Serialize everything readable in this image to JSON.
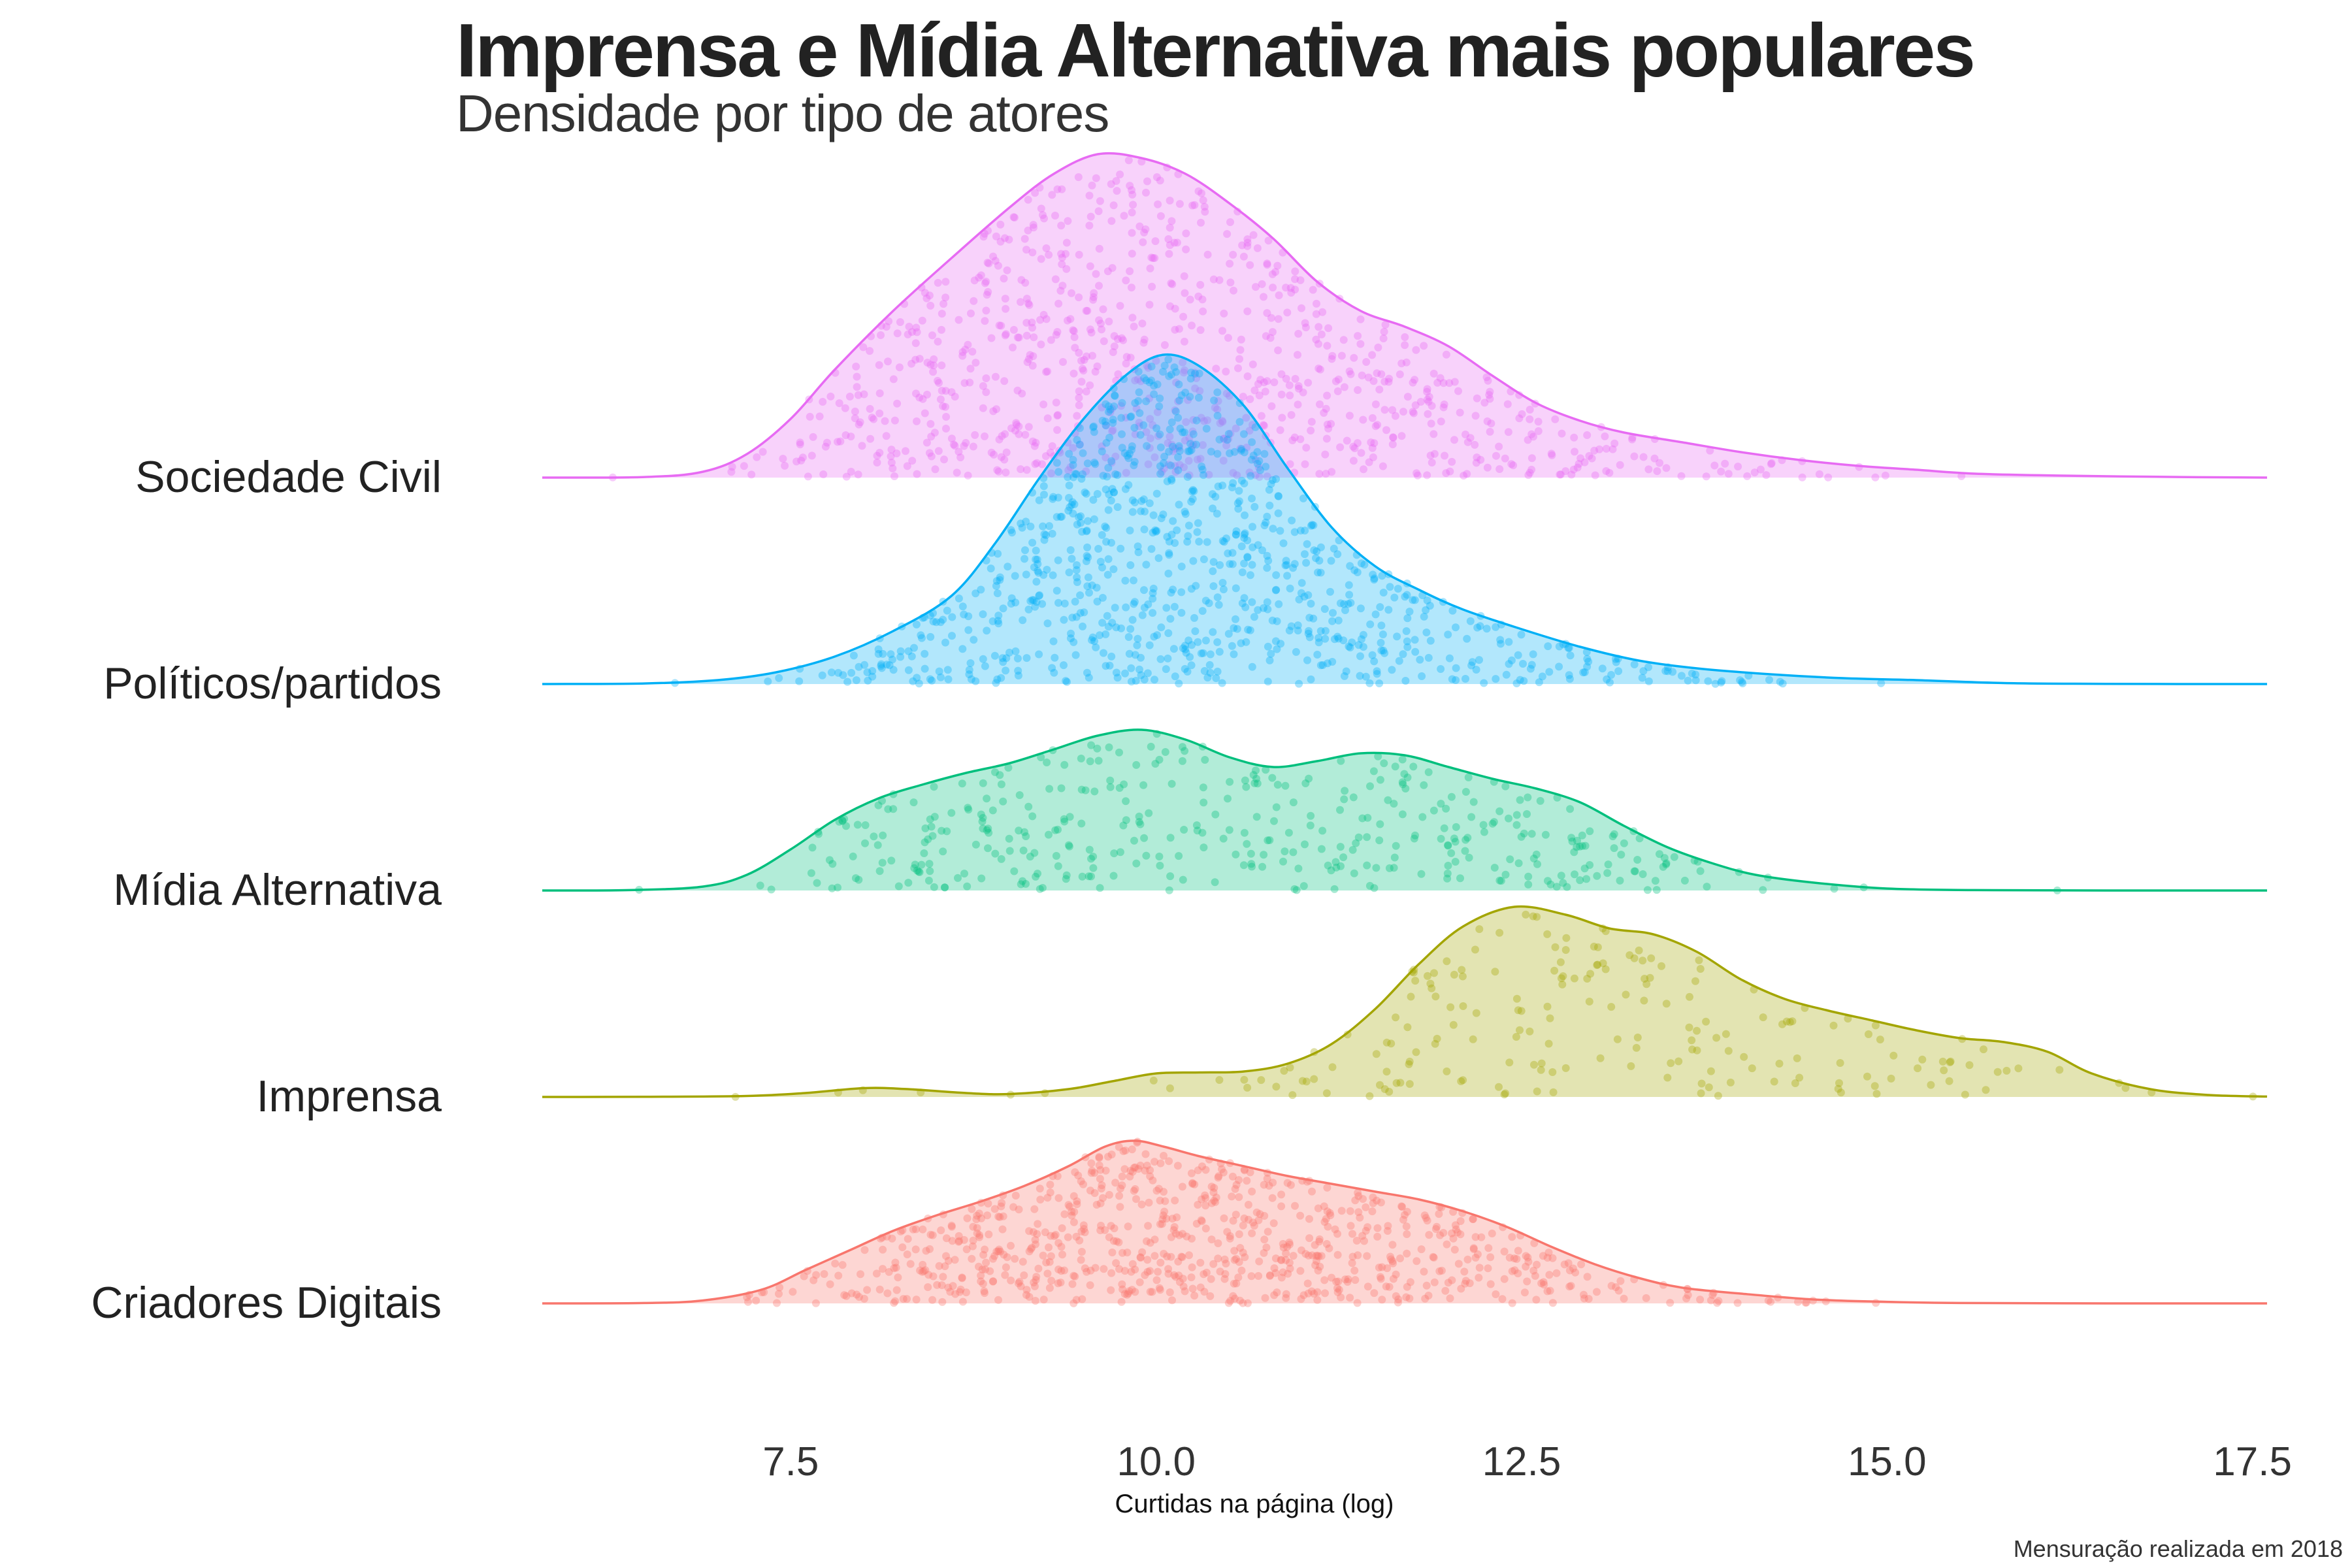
{
  "chart_data": {
    "type": "ridgeline",
    "title": "Imprensa e Mídia Alternativa mais populares",
    "subtitle": "Densidade por tipo de atores",
    "xlabel": "Curtidas na página (log)",
    "caption": "Mensuração realizada em 2018",
    "xlim": [
      5.8,
      17.6
    ],
    "x_ticks": [
      7.5,
      10.0,
      12.5,
      15.0,
      17.5
    ],
    "x_tick_labels": [
      "7.5",
      "10.0",
      "12.5",
      "15.0",
      "17.5"
    ],
    "grid": false,
    "legend": "none",
    "series": [
      {
        "name": "Criadores Digitais",
        "color": "#F8766D",
        "point_count": 800,
        "density": [
          [
            5.8,
            0
          ],
          [
            6.5,
            0.002
          ],
          [
            6.9,
            0.015
          ],
          [
            7.3,
            0.07
          ],
          [
            7.6,
            0.17
          ],
          [
            7.9,
            0.27
          ],
          [
            8.2,
            0.37
          ],
          [
            8.5,
            0.45
          ],
          [
            8.8,
            0.52
          ],
          [
            9.1,
            0.6
          ],
          [
            9.4,
            0.7
          ],
          [
            9.65,
            0.8
          ],
          [
            9.85,
            0.83
          ],
          [
            10.05,
            0.8
          ],
          [
            10.3,
            0.75
          ],
          [
            10.6,
            0.7
          ],
          [
            10.9,
            0.65
          ],
          [
            11.2,
            0.61
          ],
          [
            11.5,
            0.57
          ],
          [
            11.8,
            0.53
          ],
          [
            12.1,
            0.47
          ],
          [
            12.4,
            0.39
          ],
          [
            12.7,
            0.29
          ],
          [
            13.0,
            0.2
          ],
          [
            13.3,
            0.13
          ],
          [
            13.6,
            0.08
          ],
          [
            14.0,
            0.05
          ],
          [
            14.5,
            0.02
          ],
          [
            15.0,
            0.008
          ],
          [
            15.5,
            0.002
          ],
          [
            16.5,
            0
          ],
          [
            17.6,
            0
          ]
        ]
      },
      {
        "name": "Imprensa",
        "color": "#A3A500",
        "point_count": 200,
        "density": [
          [
            5.8,
            0
          ],
          [
            6.5,
            0.001
          ],
          [
            7.2,
            0.005
          ],
          [
            7.6,
            0.02
          ],
          [
            8.0,
            0.045
          ],
          [
            8.3,
            0.04
          ],
          [
            8.7,
            0.02
          ],
          [
            9.0,
            0.015
          ],
          [
            9.4,
            0.04
          ],
          [
            9.7,
            0.08
          ],
          [
            10.0,
            0.12
          ],
          [
            10.3,
            0.125
          ],
          [
            10.6,
            0.13
          ],
          [
            10.9,
            0.17
          ],
          [
            11.2,
            0.27
          ],
          [
            11.5,
            0.45
          ],
          [
            11.8,
            0.68
          ],
          [
            12.1,
            0.87
          ],
          [
            12.45,
            0.97
          ],
          [
            12.8,
            0.93
          ],
          [
            13.1,
            0.86
          ],
          [
            13.4,
            0.83
          ],
          [
            13.7,
            0.74
          ],
          [
            14.0,
            0.6
          ],
          [
            14.3,
            0.5
          ],
          [
            14.6,
            0.44
          ],
          [
            14.9,
            0.39
          ],
          [
            15.2,
            0.34
          ],
          [
            15.5,
            0.3
          ],
          [
            15.8,
            0.28
          ],
          [
            16.1,
            0.23
          ],
          [
            16.4,
            0.12
          ],
          [
            16.8,
            0.04
          ],
          [
            17.2,
            0.01
          ],
          [
            17.6,
            0.002
          ]
        ]
      },
      {
        "name": "Mídia Alternativa",
        "color": "#00BF7D",
        "point_count": 400,
        "density": [
          [
            5.8,
            0
          ],
          [
            6.4,
            0.002
          ],
          [
            6.9,
            0.02
          ],
          [
            7.2,
            0.08
          ],
          [
            7.5,
            0.21
          ],
          [
            7.8,
            0.36
          ],
          [
            8.1,
            0.47
          ],
          [
            8.4,
            0.54
          ],
          [
            8.7,
            0.6
          ],
          [
            9.0,
            0.65
          ],
          [
            9.3,
            0.72
          ],
          [
            9.6,
            0.79
          ],
          [
            9.9,
            0.82
          ],
          [
            10.2,
            0.77
          ],
          [
            10.5,
            0.68
          ],
          [
            10.8,
            0.63
          ],
          [
            11.1,
            0.66
          ],
          [
            11.4,
            0.7
          ],
          [
            11.7,
            0.69
          ],
          [
            12.0,
            0.63
          ],
          [
            12.3,
            0.57
          ],
          [
            12.6,
            0.52
          ],
          [
            12.9,
            0.45
          ],
          [
            13.2,
            0.33
          ],
          [
            13.5,
            0.22
          ],
          [
            13.8,
            0.14
          ],
          [
            14.1,
            0.08
          ],
          [
            14.5,
            0.04
          ],
          [
            15.0,
            0.01
          ],
          [
            15.6,
            0.002
          ],
          [
            16.5,
            0
          ],
          [
            17.6,
            0
          ]
        ]
      },
      {
        "name": "Políticos/partidos",
        "color": "#00B0F6",
        "point_count": 900,
        "density": [
          [
            5.8,
            0
          ],
          [
            6.5,
            0.003
          ],
          [
            7.0,
            0.02
          ],
          [
            7.4,
            0.06
          ],
          [
            7.8,
            0.14
          ],
          [
            8.2,
            0.27
          ],
          [
            8.6,
            0.45
          ],
          [
            8.9,
            0.72
          ],
          [
            9.2,
            1.05
          ],
          [
            9.5,
            1.35
          ],
          [
            9.8,
            1.58
          ],
          [
            10.05,
            1.68
          ],
          [
            10.3,
            1.62
          ],
          [
            10.6,
            1.42
          ],
          [
            10.9,
            1.1
          ],
          [
            11.2,
            0.8
          ],
          [
            11.5,
            0.6
          ],
          [
            11.8,
            0.48
          ],
          [
            12.1,
            0.38
          ],
          [
            12.5,
            0.28
          ],
          [
            12.9,
            0.19
          ],
          [
            13.3,
            0.12
          ],
          [
            13.7,
            0.08
          ],
          [
            14.2,
            0.05
          ],
          [
            14.7,
            0.03
          ],
          [
            15.2,
            0.02
          ],
          [
            15.8,
            0.005
          ],
          [
            16.5,
            0.001
          ],
          [
            17.6,
            0
          ]
        ]
      },
      {
        "name": "Sociedade Civil",
        "color": "#E76BF3",
        "point_count": 900,
        "density": [
          [
            5.8,
            0
          ],
          [
            6.5,
            0.003
          ],
          [
            6.9,
            0.03
          ],
          [
            7.2,
            0.12
          ],
          [
            7.5,
            0.3
          ],
          [
            7.8,
            0.55
          ],
          [
            8.2,
            0.85
          ],
          [
            8.6,
            1.12
          ],
          [
            9.0,
            1.38
          ],
          [
            9.3,
            1.55
          ],
          [
            9.6,
            1.65
          ],
          [
            9.9,
            1.63
          ],
          [
            10.2,
            1.55
          ],
          [
            10.5,
            1.4
          ],
          [
            10.8,
            1.22
          ],
          [
            11.1,
            1.0
          ],
          [
            11.4,
            0.85
          ],
          [
            11.7,
            0.77
          ],
          [
            12.0,
            0.67
          ],
          [
            12.3,
            0.52
          ],
          [
            12.6,
            0.38
          ],
          [
            12.9,
            0.29
          ],
          [
            13.2,
            0.23
          ],
          [
            13.6,
            0.18
          ],
          [
            14.0,
            0.13
          ],
          [
            14.4,
            0.09
          ],
          [
            14.8,
            0.06
          ],
          [
            15.2,
            0.04
          ],
          [
            15.6,
            0.02
          ],
          [
            16.2,
            0.01
          ],
          [
            17.0,
            0.003
          ],
          [
            17.6,
            0
          ]
        ]
      }
    ]
  }
}
